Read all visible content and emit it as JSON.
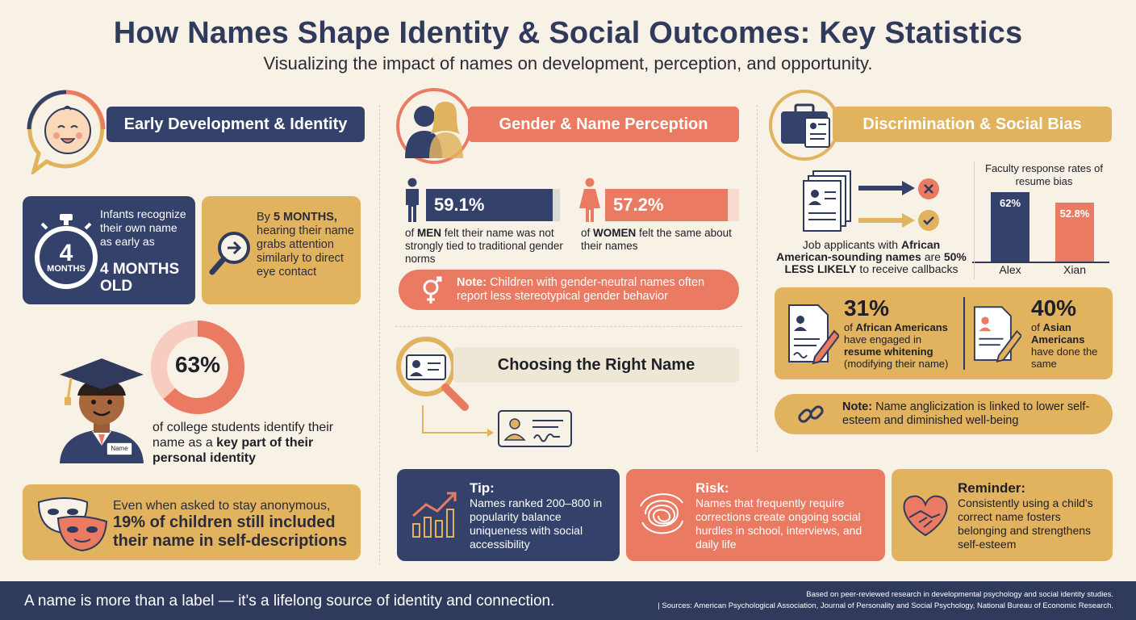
{
  "header": {
    "title": "How Names Shape Identity & Social Outcomes: Key Statistics",
    "subtitle": "Visualizing the impact of names on development, perception, and opportunity."
  },
  "early": {
    "banner": "Early Development & Identity",
    "timer_number": "4",
    "timer_unit": "MONTHS",
    "infant_text": "Infants recognize their own name as early as",
    "infant_highlight": "4 MONTHS OLD",
    "by_prefix": "By",
    "by_highlight": "5 MONTHS,",
    "by_text": "hearing their name grabs attention similarly to direct eye contact",
    "donut_value": "63%",
    "donut_fraction": 0.63,
    "college_text": "of college students identify their name as a",
    "college_highlight": "key part of their personal identity",
    "badge_label": "Name",
    "anon_text": "Even when asked to stay anonymous,",
    "anon_highlight": "19% of children still included their name in self-descriptions"
  },
  "gender": {
    "banner": "Gender & Name Perception",
    "men_value": "59.1%",
    "men_fraction": 0.591,
    "men_prefix": "of",
    "men_label": "MEN",
    "men_text": "felt their name was not strongly tied to traditional gender norms",
    "women_value": "57.2%",
    "women_fraction": 0.572,
    "women_prefix": "of",
    "women_label": "WOMEN",
    "women_text": "felt the same about their names",
    "note_label": "Note:",
    "note_text": "Children with gender-neutral names often report less stereotypical gender behavior"
  },
  "choosing": {
    "banner": "Choosing the Right Name"
  },
  "discrimination": {
    "banner": "Discrimination & Social Bias",
    "job_text_1": "Job applicants with",
    "job_highlight_1": "African American-sounding names",
    "job_text_2": "are",
    "job_highlight_2": "50% LESS LIKELY",
    "job_text_3": "to receive callbacks",
    "chart_title": "Faculty response rates of resume bias",
    "chart_data": {
      "type": "bar",
      "title": "Faculty response rates of resume bias",
      "categories": [
        "Alex",
        "Xian"
      ],
      "values": [
        62,
        52.8
      ],
      "value_labels": [
        "62%",
        "52.8%"
      ],
      "colors": [
        "#34416a",
        "#ea7a62"
      ],
      "ylim": [
        0,
        100
      ]
    },
    "stat1_value": "31%",
    "stat1_prefix": "of",
    "stat1_group": "African Americans",
    "stat1_mid": "have engaged in",
    "stat1_highlight": "resume whitening",
    "stat1_suffix": "(modifying their name)",
    "stat2_value": "40%",
    "stat2_prefix": "of",
    "stat2_group": "Asian Americans",
    "stat2_suffix": "have done the same",
    "note_label": "Note:",
    "note_text": "Name anglicization is linked to lower self-esteem and diminished well-being"
  },
  "tips": {
    "tip_title": "Tip:",
    "tip_text": "Names ranked 200–800 in popularity balance uniqueness with social accessibility",
    "risk_title": "Risk:",
    "risk_text": "Names that frequently require corrections create ongoing social hurdles in school, interviews, and daily life",
    "reminder_title": "Reminder:",
    "reminder_text": "Consistently using a child's correct name fosters belonging and strengthens self-esteem"
  },
  "footer": {
    "tagline": "A name is more than a label — it's a lifelong source of identity and connection.",
    "note_line1": "Based on peer-reviewed research in developmental psychology and social identity studies.",
    "note_line2": "|  Sources: American Psychological Association, Journal of Personality and Social Psychology, National Bureau of Economic Research."
  },
  "colors": {
    "navy": "#34416a",
    "gold": "#e1b35f",
    "coral": "#ea7a62",
    "cream": "#f7f1e6"
  },
  "icons": [
    "baby-face-icon",
    "stopwatch-icon",
    "magnifier-arrow-icon",
    "graduate-icon",
    "masks-icon",
    "people-silhouette-icon",
    "man-icon",
    "woman-icon",
    "gender-neutral-icon",
    "id-card-magnifier-icon",
    "id-card-icon",
    "briefcase-icon",
    "resume-stack-icon",
    "x-mark-icon",
    "check-mark-icon",
    "resume-pen-icon",
    "broken-chain-icon",
    "growth-chart-icon",
    "tangle-icon",
    "heart-hands-icon"
  ]
}
